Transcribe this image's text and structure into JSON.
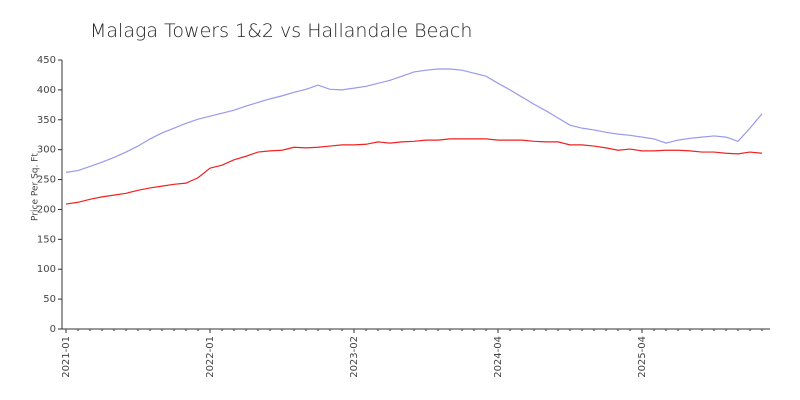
{
  "chart_data": {
    "type": "line",
    "title": "Malaga Towers 1&2 vs Hallandale Beach",
    "y_label": "Price Per Sq. Ft",
    "categories": [
      "2021-01",
      null,
      null,
      null,
      null,
      null,
      null,
      null,
      null,
      null,
      null,
      null,
      "2022-01",
      null,
      null,
      null,
      null,
      null,
      null,
      null,
      null,
      null,
      null,
      null,
      "2023-02",
      null,
      null,
      null,
      null,
      null,
      null,
      null,
      null,
      null,
      null,
      null,
      "2024-04",
      null,
      null,
      null,
      null,
      null,
      null,
      null,
      null,
      null,
      null,
      null,
      "2025-04",
      null,
      null,
      null,
      null,
      null,
      null,
      null,
      null,
      null,
      null
    ],
    "series": [
      {
        "color": "#9999ee",
        "values": [
          262,
          265,
          272,
          279,
          287,
          296,
          306,
          318,
          328,
          336,
          344,
          351,
          356,
          361,
          366,
          373,
          379,
          385,
          390,
          396,
          401,
          408,
          401,
          400,
          403,
          406,
          411,
          416,
          423,
          430,
          433,
          435,
          435,
          433,
          428,
          423,
          411,
          400,
          388,
          376,
          365,
          353,
          341,
          336,
          333,
          329,
          326,
          324,
          321,
          318,
          311,
          316,
          319,
          321,
          323,
          321,
          314,
          336,
          360
        ]
      },
      {
        "color": "#ee2222",
        "values": [
          209,
          212,
          217,
          221,
          224,
          227,
          232,
          236,
          239,
          242,
          244,
          253,
          269,
          274,
          283,
          289,
          296,
          298,
          299,
          304,
          303,
          304,
          306,
          308,
          308,
          309,
          313,
          311,
          313,
          314,
          316,
          316,
          318,
          318,
          318,
          318,
          316,
          316,
          316,
          314,
          313,
          313,
          308,
          308,
          306,
          303,
          299,
          301,
          298,
          298,
          299,
          299,
          298,
          296,
          296,
          294,
          293,
          296,
          294
        ]
      }
    ],
    "ylim": [
      0,
      450
    ],
    "yticks": [
      0,
      50,
      100,
      150,
      200,
      250,
      300,
      350,
      400,
      450
    ],
    "grid": false
  }
}
